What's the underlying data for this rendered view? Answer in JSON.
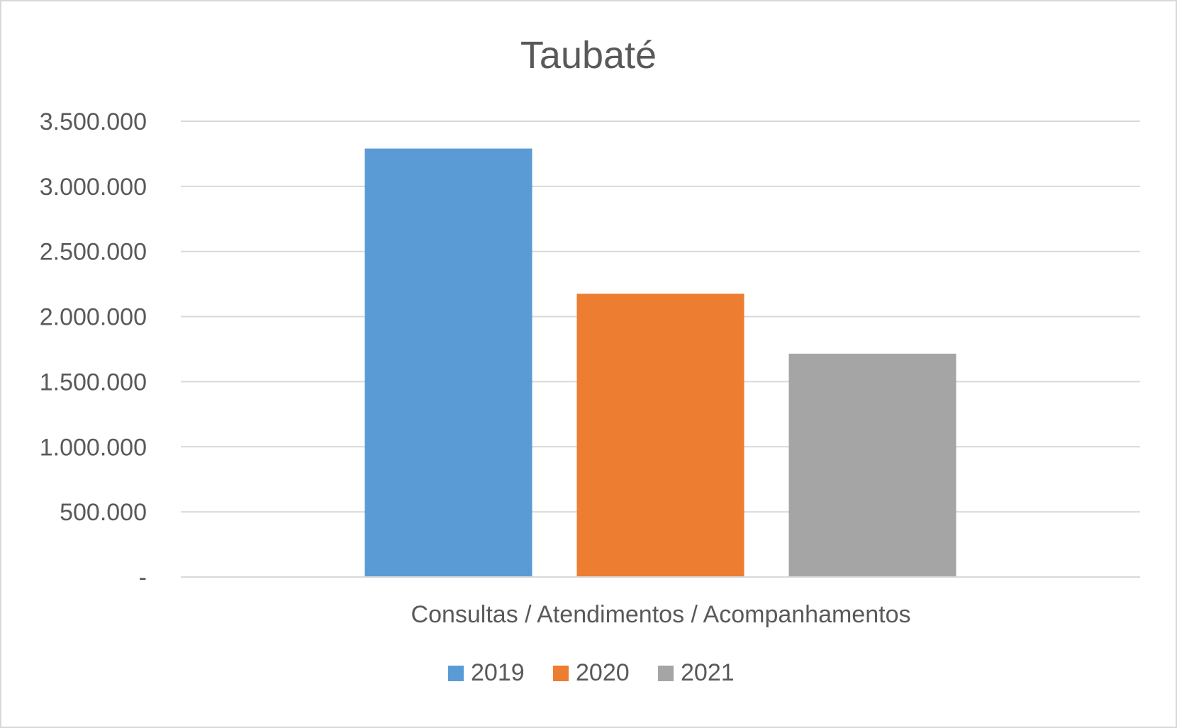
{
  "chart_data": {
    "type": "bar",
    "title": "Taubaté",
    "categories": [
      "Consultas / Atendimentos / Acompanhamentos"
    ],
    "series": [
      {
        "name": "2019",
        "values": [
          3290000
        ],
        "color": "#5b9bd5"
      },
      {
        "name": "2020",
        "values": [
          2175000
        ],
        "color": "#ed7d31"
      },
      {
        "name": "2021",
        "values": [
          1715000
        ],
        "color": "#a5a5a5"
      }
    ],
    "ylim": [
      0,
      3500000
    ],
    "yticks": [
      {
        "value": 0,
        "label": "-"
      },
      {
        "value": 500000,
        "label": "500.000"
      },
      {
        "value": 1000000,
        "label": "1.000.000"
      },
      {
        "value": 1500000,
        "label": "1.500.000"
      },
      {
        "value": 2000000,
        "label": "2.000.000"
      },
      {
        "value": 2500000,
        "label": "2.500.000"
      },
      {
        "value": 3000000,
        "label": "3.000.000"
      },
      {
        "value": 3500000,
        "label": "3.500.000"
      }
    ],
    "grid": true,
    "legend_position": "bottom"
  }
}
